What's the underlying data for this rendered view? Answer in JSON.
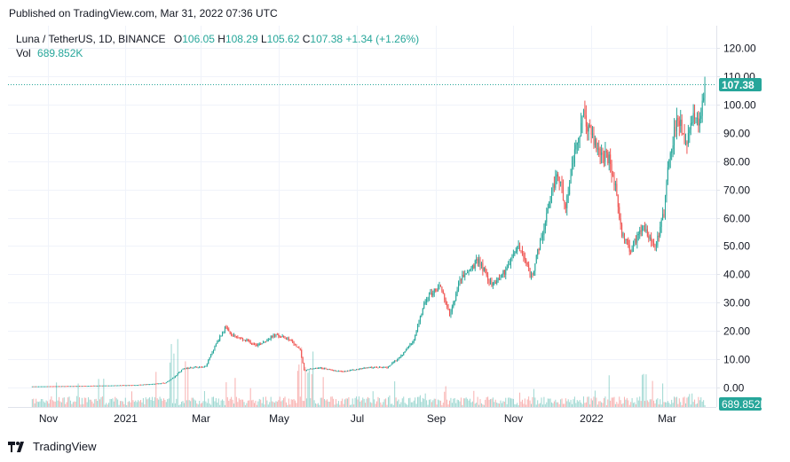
{
  "published": "Published on TradingView.com, Mar 31, 2022 07:36 UTC",
  "brand": "TradingView",
  "legend": {
    "symbol": "Luna / TetherUS, 1D, BINANCE",
    "o_label": "O",
    "o_val": "106.05",
    "h_label": "H",
    "h_val": "108.29",
    "l_label": "L",
    "l_val": "105.62",
    "c_label": "C",
    "c_val": "107.38",
    "change": "+1.34 (+1.26%)",
    "vol_label": "Vol",
    "vol_val": "689.852K"
  },
  "colors": {
    "up": "#26a69a",
    "down": "#ef5350",
    "grid": "#f0f3fa",
    "text": "#131722",
    "axis": "#e0e3eb"
  },
  "chart_data": {
    "type": "candlestick",
    "title": "Luna / TetherUS, 1D, BINANCE",
    "y_ticks": [
      "120.00",
      "110.00",
      "100.00",
      "90.00",
      "80.00",
      "70.00",
      "60.00",
      "50.00",
      "40.00",
      "30.00",
      "20.00",
      "10.00",
      "0.00"
    ],
    "ylim": [
      -7,
      128
    ],
    "x_ticks": [
      "Nov",
      "2021",
      "Mar",
      "May",
      "Jul",
      "Sep",
      "Nov",
      "2022",
      "Mar"
    ],
    "last_price_label": "107.38",
    "last_price": 107.38,
    "volume_label": "689.852K",
    "price_path": [
      {
        "t": "2020-10-20",
        "close": 0.3
      },
      {
        "t": "2020-12-01",
        "close": 0.5
      },
      {
        "t": "2021-01-10",
        "close": 0.8
      },
      {
        "t": "2021-02-01",
        "close": 1.5
      },
      {
        "t": "2021-02-08",
        "close": 3.5
      },
      {
        "t": "2021-02-15",
        "close": 6.5
      },
      {
        "t": "2021-02-22",
        "close": 7.0
      },
      {
        "t": "2021-03-05",
        "close": 7.5
      },
      {
        "t": "2021-03-12",
        "close": 14.5
      },
      {
        "t": "2021-03-20",
        "close": 21.0
      },
      {
        "t": "2021-03-25",
        "close": 18.5
      },
      {
        "t": "2021-04-05",
        "close": 16.5
      },
      {
        "t": "2021-04-15",
        "close": 15.0
      },
      {
        "t": "2021-04-28",
        "close": 18.5
      },
      {
        "t": "2021-05-10",
        "close": 17.0
      },
      {
        "t": "2021-05-18",
        "close": 13.0
      },
      {
        "t": "2021-05-21",
        "close": 6.0
      },
      {
        "t": "2021-06-01",
        "close": 7.0
      },
      {
        "t": "2021-06-20",
        "close": 5.5
      },
      {
        "t": "2021-07-10",
        "close": 7.0
      },
      {
        "t": "2021-07-25",
        "close": 7.0
      },
      {
        "t": "2021-08-05",
        "close": 11.0
      },
      {
        "t": "2021-08-15",
        "close": 17.0
      },
      {
        "t": "2021-08-25",
        "close": 32.0
      },
      {
        "t": "2021-09-05",
        "close": 36.0
      },
      {
        "t": "2021-09-12",
        "close": 25.0
      },
      {
        "t": "2021-09-20",
        "close": 38.0
      },
      {
        "t": "2021-10-05",
        "close": 45.0
      },
      {
        "t": "2021-10-15",
        "close": 36.0
      },
      {
        "t": "2021-10-25",
        "close": 41.0
      },
      {
        "t": "2021-11-05",
        "close": 50.0
      },
      {
        "t": "2021-11-15",
        "close": 39.0
      },
      {
        "t": "2021-11-25",
        "close": 56.0
      },
      {
        "t": "2021-12-05",
        "close": 76.0
      },
      {
        "t": "2021-12-12",
        "close": 65.0
      },
      {
        "t": "2021-12-18",
        "close": 80.0
      },
      {
        "t": "2021-12-26",
        "close": 96.0
      },
      {
        "t": "2022-01-05",
        "close": 85.0
      },
      {
        "t": "2022-01-15",
        "close": 80.0
      },
      {
        "t": "2022-01-20",
        "close": 70.0
      },
      {
        "t": "2022-01-25",
        "close": 55.0
      },
      {
        "t": "2022-02-01",
        "close": 48.0
      },
      {
        "t": "2022-02-10",
        "close": 58.0
      },
      {
        "t": "2022-02-20",
        "close": 50.0
      },
      {
        "t": "2022-02-27",
        "close": 62.0
      },
      {
        "t": "2022-03-02",
        "close": 78.0
      },
      {
        "t": "2022-03-10",
        "close": 97.0
      },
      {
        "t": "2022-03-15",
        "close": 85.0
      },
      {
        "t": "2022-03-22",
        "close": 95.0
      },
      {
        "t": "2022-03-26",
        "close": 92.0
      },
      {
        "t": "2022-03-31",
        "close": 107.38
      }
    ]
  }
}
